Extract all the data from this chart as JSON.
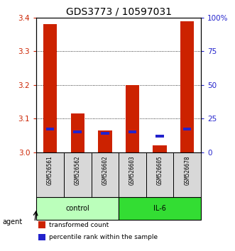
{
  "title": "GDS3773 / 10597031",
  "samples": [
    "GSM526561",
    "GSM526562",
    "GSM526602",
    "GSM526603",
    "GSM526605",
    "GSM526678"
  ],
  "red_values": [
    3.38,
    3.115,
    3.065,
    3.2,
    3.02,
    3.39
  ],
  "blue_values_pct": [
    17,
    15,
    14,
    15,
    12,
    17
  ],
  "ylim": [
    3.0,
    3.4
  ],
  "yticks": [
    3.0,
    3.1,
    3.2,
    3.3,
    3.4
  ],
  "right_yticks": [
    0,
    25,
    50,
    75,
    100
  ],
  "groups": [
    {
      "label": "control",
      "indices": [
        0,
        1,
        2
      ],
      "color": "#bbffbb"
    },
    {
      "label": "IL-6",
      "indices": [
        3,
        4,
        5
      ],
      "color": "#33dd33"
    }
  ],
  "agent_label": "agent",
  "red_color": "#cc2200",
  "blue_color": "#2222cc",
  "bar_width": 0.5,
  "base_value": 3.0,
  "legend_items": [
    {
      "label": "transformed count",
      "color": "#cc2200"
    },
    {
      "label": "percentile rank within the sample",
      "color": "#2222cc"
    }
  ],
  "title_fontsize": 10,
  "tick_fontsize": 7.5,
  "sample_fontsize": 5.5,
  "group_fontsize": 7,
  "legend_fontsize": 6.5
}
